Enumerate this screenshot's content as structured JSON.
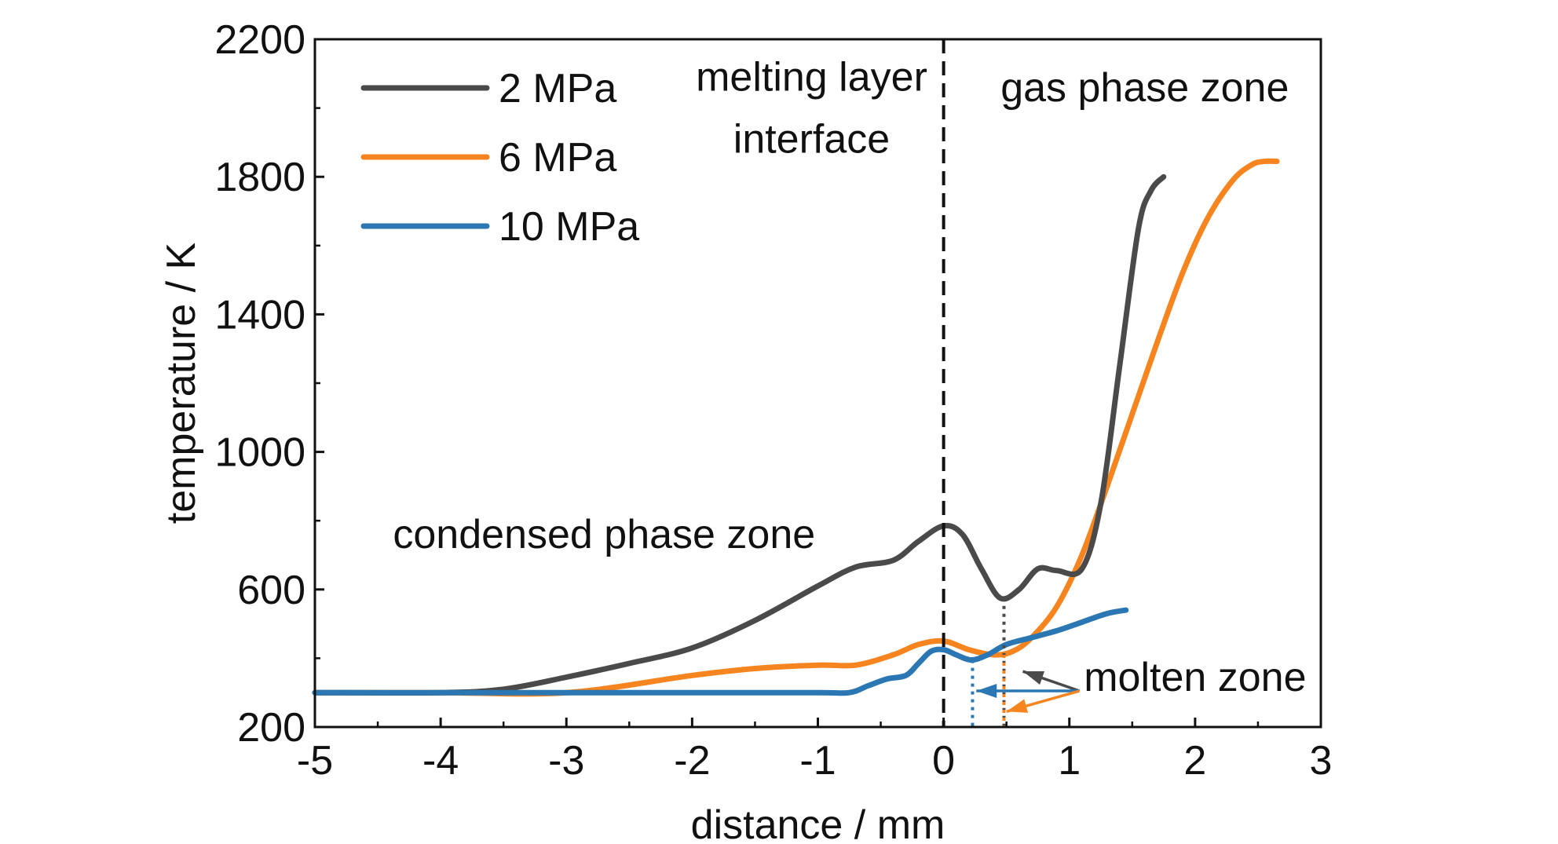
{
  "chart_data": {
    "type": "line",
    "title": "",
    "xlabel": "distance / mm",
    "ylabel": "temperature / K",
    "xlim": [
      -5,
      3
    ],
    "ylim": [
      200,
      2200
    ],
    "xticks": [
      -5,
      -4,
      -3,
      -2,
      -1,
      0,
      1,
      2,
      3
    ],
    "yticks": [
      200,
      600,
      1000,
      1400,
      1800,
      2200
    ],
    "grid": false,
    "legend_position": "top-left",
    "series": [
      {
        "name": "2 MPa",
        "color": "#4a4a4a",
        "x": [
          -5,
          -4,
          -3.5,
          -3,
          -2.5,
          -2,
          -1.5,
          -1,
          -0.7,
          -0.4,
          -0.2,
          0,
          0.15,
          0.3,
          0.45,
          0.6,
          0.75,
          0.9,
          1.1,
          1.25,
          1.4,
          1.55,
          1.65,
          1.75
        ],
        "y": [
          300,
          300,
          310,
          345,
          385,
          430,
          510,
          610,
          665,
          685,
          740,
          785,
          760,
          660,
          575,
          600,
          660,
          655,
          660,
          850,
          1250,
          1650,
          1760,
          1800
        ]
      },
      {
        "name": "6 MPa",
        "color": "#f7851f",
        "x": [
          -5,
          -4,
          -3,
          -2,
          -1.5,
          -1,
          -0.7,
          -0.4,
          -0.2,
          0,
          0.2,
          0.4,
          0.55,
          0.7,
          0.9,
          1.1,
          1.3,
          1.5,
          1.7,
          1.9,
          2.1,
          2.3,
          2.45,
          2.55,
          2.65
        ],
        "y": [
          300,
          300,
          300,
          350,
          370,
          380,
          380,
          410,
          440,
          450,
          425,
          410,
          420,
          460,
          550,
          700,
          900,
          1110,
          1320,
          1520,
          1680,
          1790,
          1835,
          1845,
          1845
        ]
      },
      {
        "name": "10 MPa",
        "color": "#2a77b4",
        "x": [
          -5,
          -4,
          -3,
          -2,
          -1,
          -0.75,
          -0.6,
          -0.45,
          -0.3,
          -0.2,
          -0.1,
          0,
          0.1,
          0.22,
          0.35,
          0.5,
          0.7,
          0.9,
          1.1,
          1.3,
          1.45
        ],
        "y": [
          300,
          300,
          300,
          300,
          300,
          300,
          320,
          340,
          350,
          385,
          420,
          425,
          410,
          395,
          410,
          440,
          460,
          480,
          505,
          530,
          540
        ]
      }
    ],
    "annotations": [
      {
        "text": "melting layer",
        "x": -1.05,
        "y": 2050
      },
      {
        "text": "interface",
        "x": -1.05,
        "y": 1870
      },
      {
        "text": "gas phase zone",
        "x": 1.6,
        "y": 2020
      },
      {
        "text": "condensed phase zone",
        "x": -2.7,
        "y": 720
      },
      {
        "text": "molten zone",
        "x": 2.0,
        "y": 305
      }
    ],
    "reference_lines": [
      {
        "style": "dashed",
        "orientation": "vertical",
        "x": 0,
        "color": "#111111"
      },
      {
        "style": "dotted",
        "orientation": "vertical",
        "x": 0.48,
        "y_top": 575,
        "color": "#4a4a4a"
      },
      {
        "style": "dotted",
        "orientation": "vertical",
        "x": 0.48,
        "y_top": 410,
        "color": "#f7851f"
      },
      {
        "style": "dotted",
        "orientation": "vertical",
        "x": 0.23,
        "y_top": 395,
        "color": "#2a77b4"
      }
    ]
  }
}
